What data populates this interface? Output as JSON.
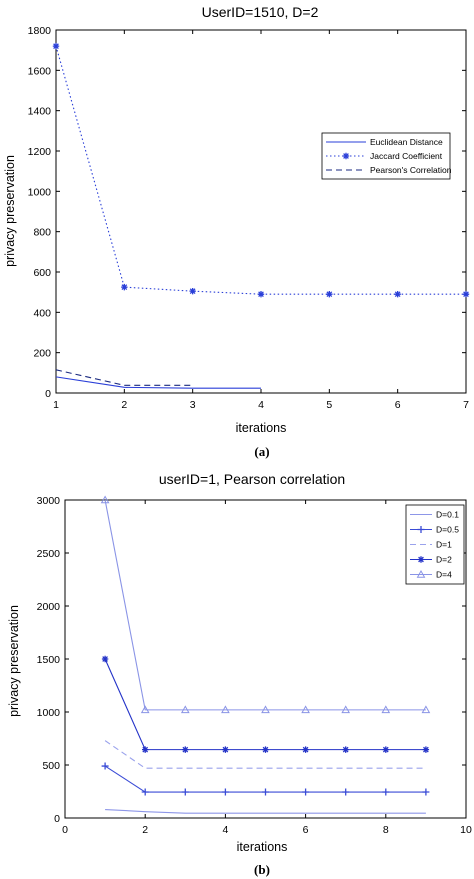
{
  "chart_data": [
    {
      "type": "line",
      "title": "UserID=1510, D=2",
      "xlabel": "iterations",
      "ylabel": "privacy preservation",
      "caption": "(a)",
      "xlim": [
        1,
        7
      ],
      "ylim": [
        0,
        1800
      ],
      "xticks": [
        1,
        2,
        3,
        4,
        5,
        6,
        7
      ],
      "yticks": [
        0,
        200,
        400,
        600,
        800,
        1000,
        1200,
        1400,
        1600,
        1800
      ],
      "legend_position": "top-right",
      "grid": false,
      "series": [
        {
          "name": "Euclidean Distance",
          "style": "solid",
          "marker": "none",
          "color": "#2a3fd8",
          "x": [
            1,
            2,
            3,
            4
          ],
          "y": [
            80,
            28,
            24,
            24
          ]
        },
        {
          "name": "Jaccard Coefficient",
          "style": "dotted",
          "marker": "star",
          "color": "#2a3fd8",
          "x": [
            1,
            2,
            3,
            4,
            5,
            6,
            7
          ],
          "y": [
            1720,
            525,
            505,
            490,
            490,
            490,
            490
          ]
        },
        {
          "name": "Pearson's Correlation",
          "style": "dashed",
          "marker": "none",
          "color": "#1a2a80",
          "x": [
            1,
            2,
            3
          ],
          "y": [
            115,
            38,
            38
          ]
        }
      ]
    },
    {
      "type": "line",
      "title": "userID=1, Pearson correlation",
      "xlabel": "iterations",
      "ylabel": "privacy preservation",
      "caption": "(b)",
      "xlim": [
        0,
        10
      ],
      "ylim": [
        0,
        3000
      ],
      "xticks": [
        0,
        2,
        4,
        6,
        8,
        10
      ],
      "yticks": [
        0,
        500,
        1000,
        1500,
        2000,
        2500,
        3000
      ],
      "legend_position": "top-right",
      "grid": false,
      "series": [
        {
          "name": "D=0.1",
          "style": "solid",
          "marker": "none",
          "color": "#8d96e8",
          "x": [
            1,
            2,
            3,
            4,
            5,
            6,
            7,
            8,
            9
          ],
          "y": [
            80,
            60,
            45,
            45,
            45,
            45,
            45,
            45,
            45
          ]
        },
        {
          "name": "D=0.5",
          "style": "solid",
          "marker": "plus",
          "color": "#3a4bd6",
          "x": [
            1,
            2,
            3,
            4,
            5,
            6,
            7,
            8,
            9
          ],
          "y": [
            490,
            245,
            245,
            245,
            245,
            245,
            245,
            245,
            245
          ]
        },
        {
          "name": "D=1",
          "style": "dashed",
          "marker": "none",
          "color": "#9aa2ec",
          "x": [
            1,
            2,
            3,
            4,
            5,
            6,
            7,
            8,
            9
          ],
          "y": [
            730,
            470,
            470,
            470,
            470,
            470,
            470,
            470,
            470
          ]
        },
        {
          "name": "D=2",
          "style": "solid",
          "marker": "star",
          "color": "#2433c8",
          "x": [
            1,
            2,
            3,
            4,
            5,
            6,
            7,
            8,
            9
          ],
          "y": [
            1500,
            645,
            645,
            645,
            645,
            645,
            645,
            645,
            645
          ]
        },
        {
          "name": "D=4",
          "style": "solid",
          "marker": "triangle",
          "color": "#8a94e6",
          "x": [
            1,
            2,
            3,
            4,
            5,
            6,
            7,
            8,
            9
          ],
          "y": [
            3000,
            1020,
            1020,
            1020,
            1020,
            1020,
            1020,
            1020,
            1020
          ]
        }
      ]
    }
  ]
}
